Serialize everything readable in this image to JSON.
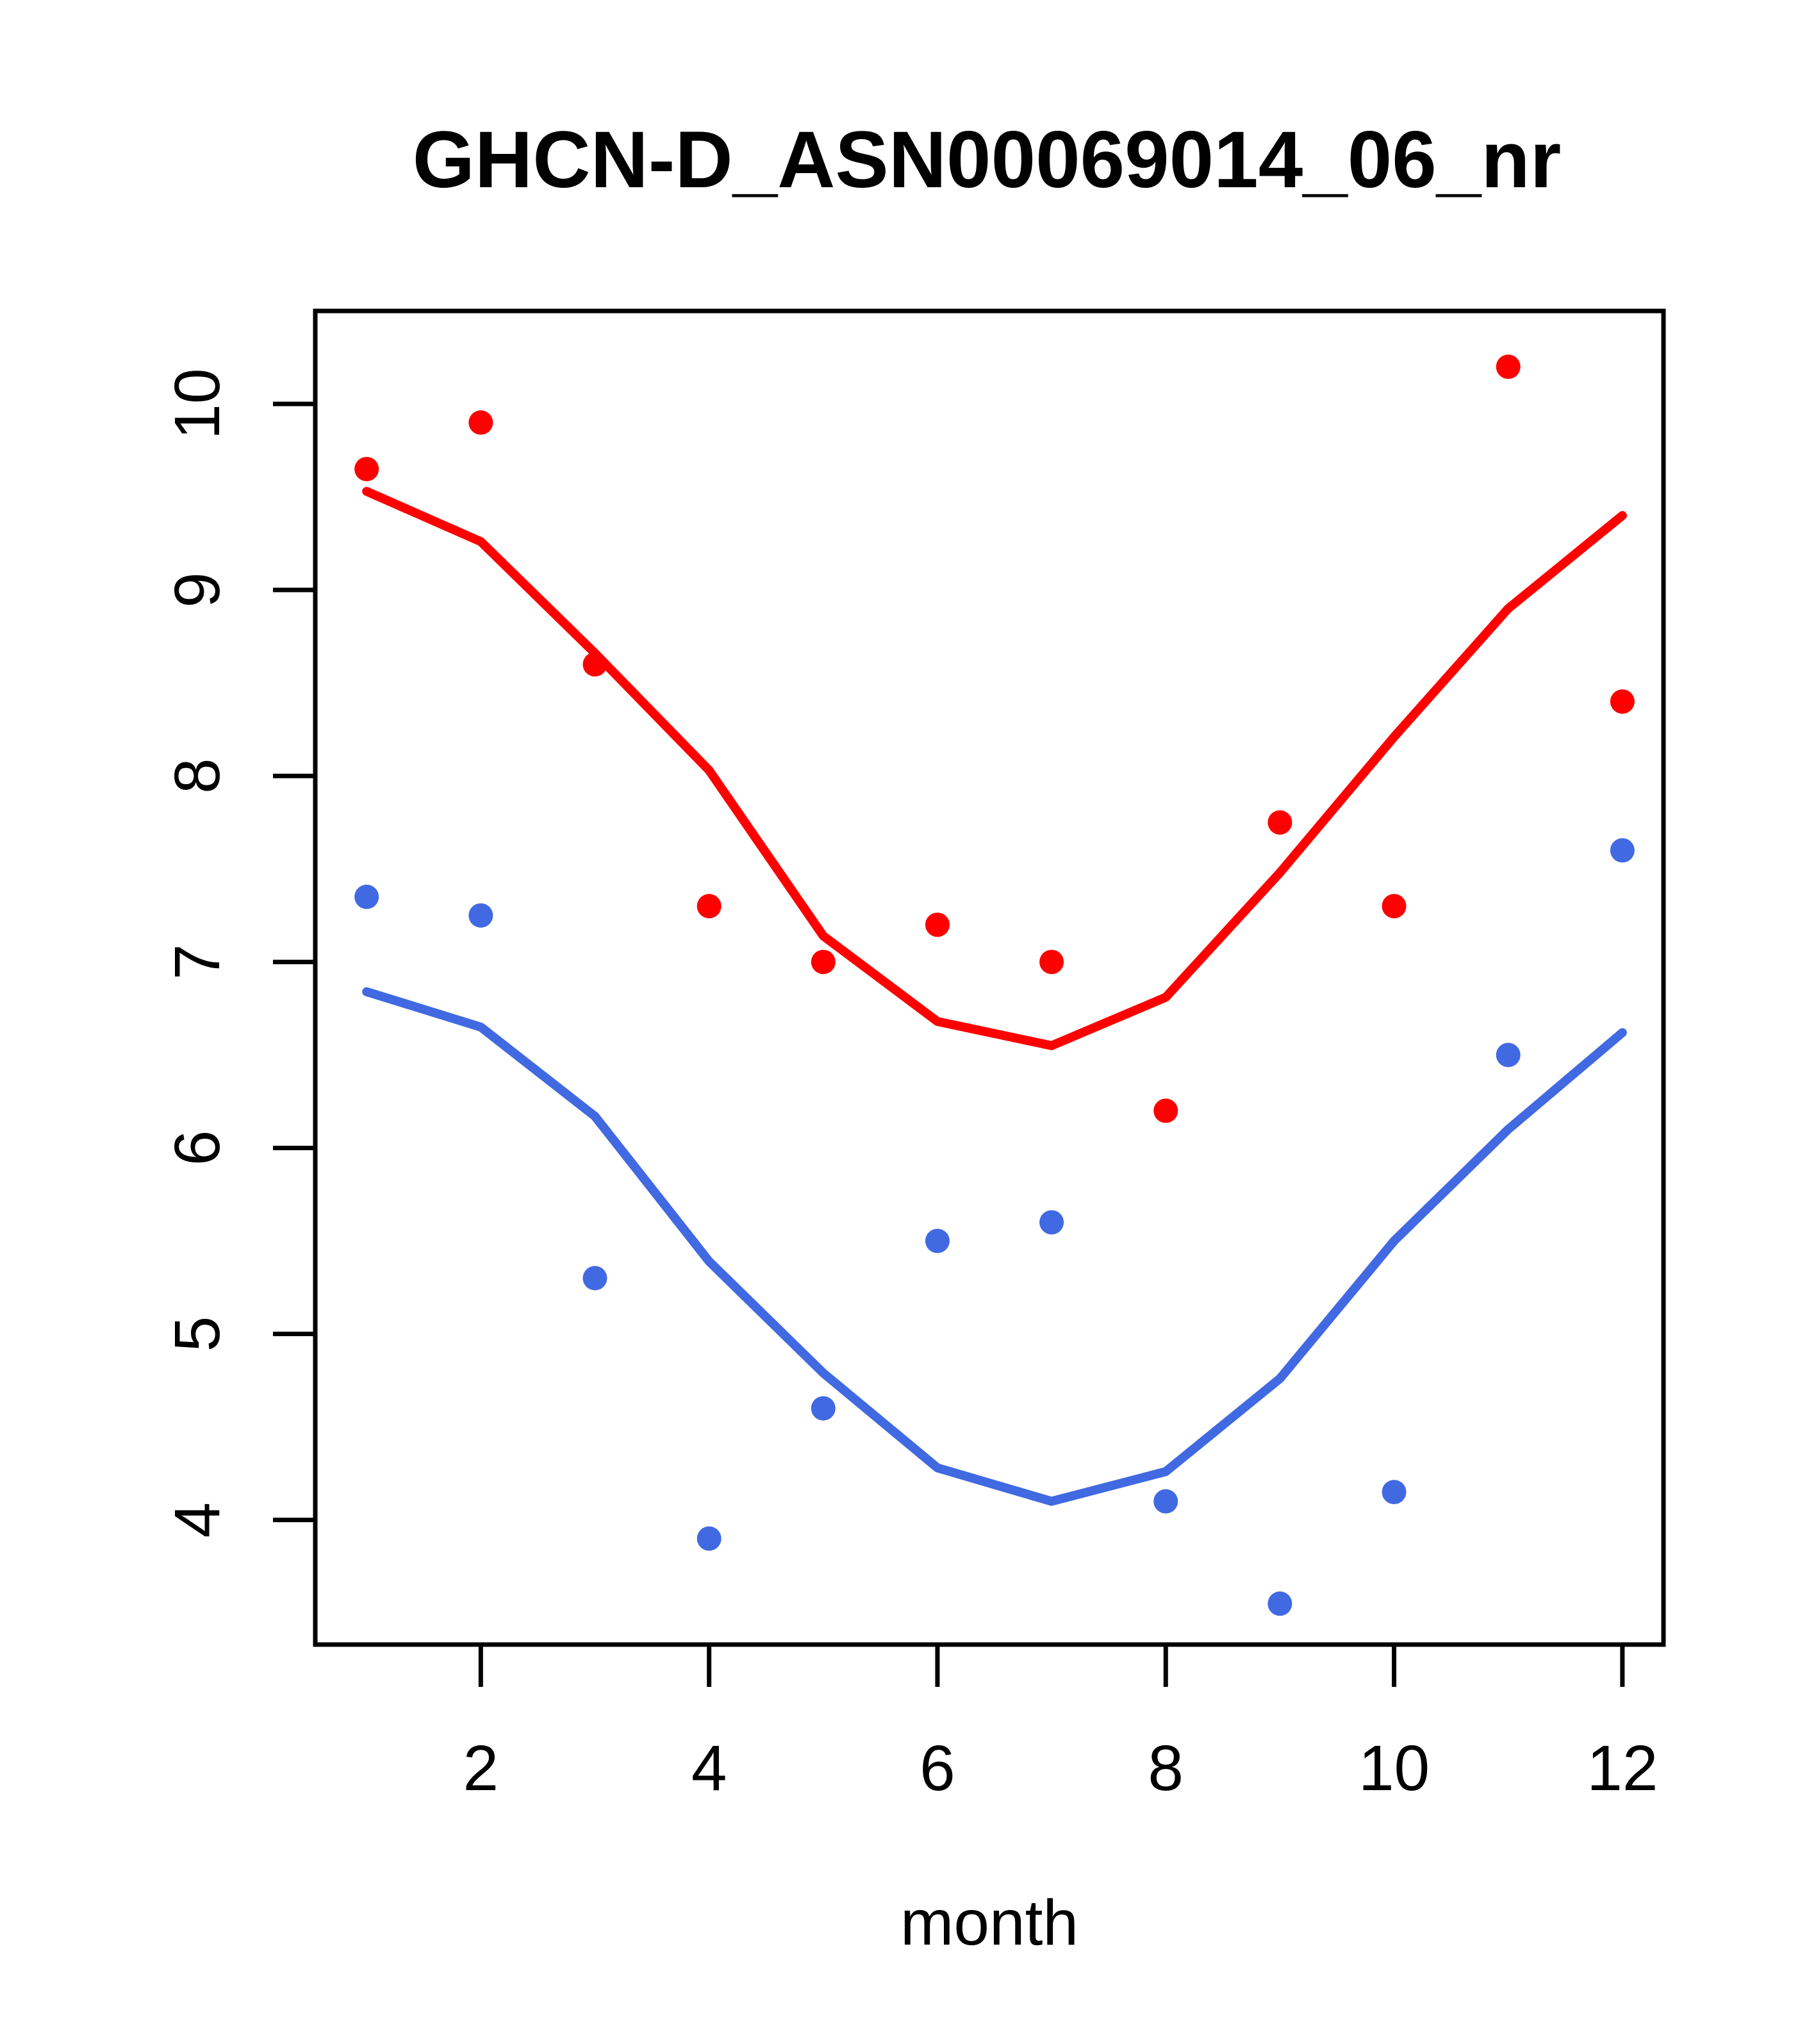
{
  "chart_data": {
    "type": "scatter",
    "title": "GHCN-D_ASN00069014_06_nr",
    "xlabel": "month",
    "ylabel": "",
    "x": [
      1,
      2,
      3,
      4,
      5,
      6,
      7,
      8,
      9,
      10,
      11,
      12
    ],
    "series": [
      {
        "name": "red-points",
        "kind": "scatter",
        "color": "#FF0000",
        "values": [
          9.65,
          9.9,
          8.6,
          7.3,
          7.0,
          7.2,
          7.0,
          6.2,
          7.75,
          7.3,
          10.2,
          8.4
        ]
      },
      {
        "name": "red-smooth-line",
        "kind": "line",
        "color": "#FF0000",
        "values": [
          9.53,
          9.26,
          8.66,
          8.03,
          7.14,
          6.68,
          6.55,
          6.81,
          7.48,
          8.21,
          8.9,
          9.4
        ]
      },
      {
        "name": "blue-points",
        "kind": "scatter",
        "color": "#4169E1",
        "values": [
          7.35,
          7.25,
          5.3,
          3.9,
          4.6,
          5.5,
          5.6,
          4.1,
          3.55,
          4.15,
          6.5,
          7.6
        ]
      },
      {
        "name": "blue-smooth-line",
        "kind": "line",
        "color": "#4169E1",
        "values": [
          6.84,
          6.65,
          6.17,
          5.39,
          4.79,
          4.28,
          4.1,
          4.26,
          4.76,
          5.5,
          6.1,
          6.62
        ]
      }
    ],
    "x_ticks": [
      "2",
      "4",
      "6",
      "8",
      "10",
      "12"
    ],
    "x_tick_values": [
      2,
      4,
      6,
      8,
      10,
      12
    ],
    "y_ticks": [
      "4",
      "5",
      "6",
      "7",
      "8",
      "9",
      "10"
    ],
    "y_tick_values": [
      4,
      5,
      6,
      7,
      8,
      9,
      10
    ],
    "xlim": [
      0.55,
      12.36
    ],
    "ylim": [
      3.33,
      10.5
    ],
    "grid": false,
    "legend": "none",
    "frame_color": "#000000"
  }
}
